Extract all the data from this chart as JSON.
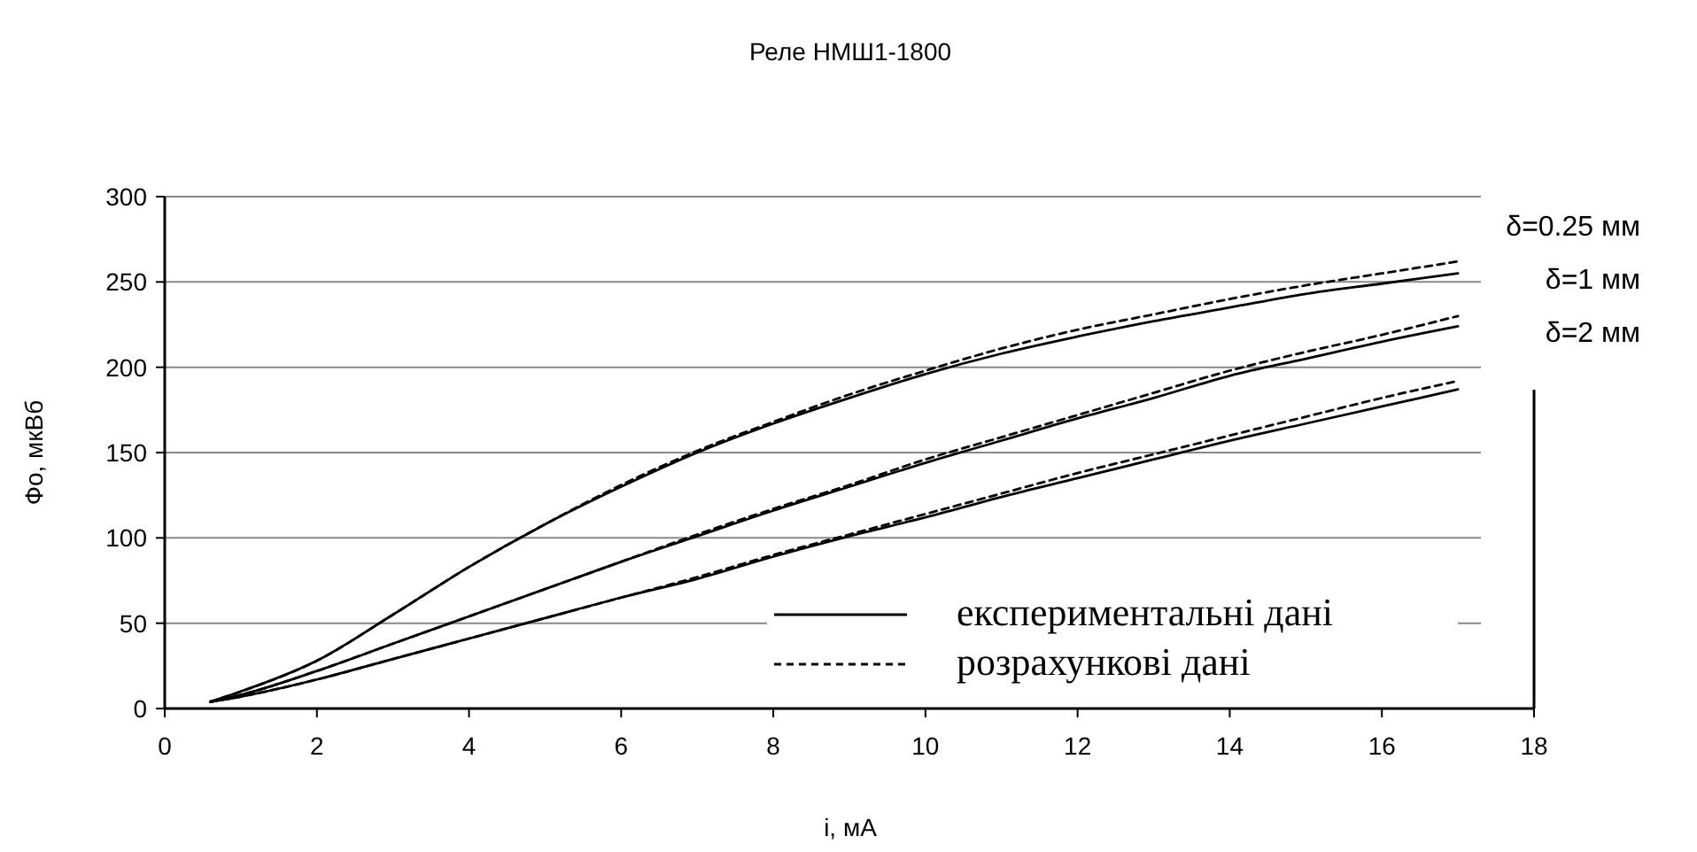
{
  "chart_data": {
    "type": "line",
    "title": "Реле НМШ1-1800",
    "xlabel": "і, мА",
    "ylabel": "Фо, мкВб",
    "annotations": [
      "δ=0.25 мм",
      "δ=1 мм",
      "δ=2 мм"
    ],
    "xlim": [
      0,
      18
    ],
    "xticks": [
      0,
      2,
      4,
      6,
      8,
      10,
      12,
      14,
      16,
      18
    ],
    "ylim": [
      0,
      300
    ],
    "yticks": [
      0,
      50,
      100,
      150,
      200,
      250,
      300
    ],
    "grid": "y",
    "legend": "bottom right",
    "marker": "none",
    "x": [
      0.6,
      1,
      2,
      3,
      4,
      5,
      6,
      7,
      8,
      9,
      10,
      11,
      12,
      13,
      14,
      15,
      16,
      17
    ],
    "series": [
      {
        "name": "експериментальні дані",
        "color": "#000000",
        "line_style": "solid",
        "values": [
          4,
          10,
          28,
          55,
          83,
          108,
          130,
          150,
          167,
          182,
          196,
          208,
          218,
          227,
          235,
          243,
          249,
          255
        ]
      },
      {
        "color": "#000000",
        "line_style": "solid",
        "values": [
          4,
          8,
          22,
          38,
          54,
          70,
          86,
          101,
          116,
          130,
          144,
          157,
          170,
          182,
          195,
          205,
          215,
          224
        ]
      },
      {
        "color": "#000000",
        "line_style": "solid",
        "values": [
          4,
          7,
          17,
          29,
          41,
          53,
          65,
          76,
          89,
          101,
          112,
          124,
          135,
          146,
          157,
          167,
          177,
          187
        ]
      },
      {
        "name": "розрахункові дані",
        "color": "#000000",
        "line_style": "dashed",
        "values": [
          4,
          10,
          28,
          55,
          83,
          108,
          131,
          151,
          168,
          184,
          198,
          211,
          222,
          231,
          240,
          248,
          255,
          262
        ]
      },
      {
        "color": "#000000",
        "line_style": "dashed",
        "values": [
          4,
          8,
          22,
          38,
          54,
          70,
          86,
          102,
          117,
          131,
          146,
          159,
          172,
          185,
          198,
          209,
          219,
          230
        ]
      },
      {
        "color": "#000000",
        "line_style": "dashed",
        "values": [
          4,
          7,
          17,
          29,
          41,
          53,
          65,
          77,
          90,
          102,
          114,
          126,
          138,
          149,
          160,
          171,
          182,
          192
        ]
      }
    ]
  }
}
